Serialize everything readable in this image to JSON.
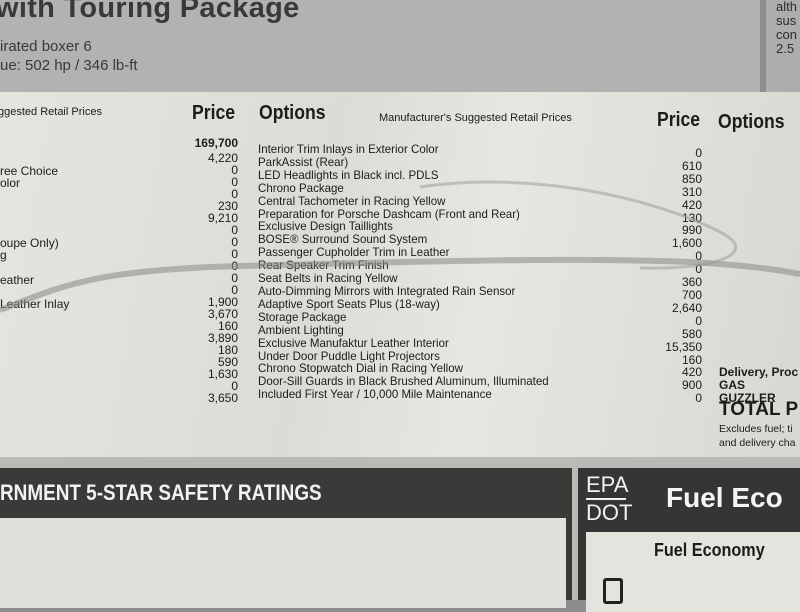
{
  "header": {
    "title": "with Touring Package",
    "engine": "irated boxer 6",
    "torque": "ue: 502 hp / 346 lb-ft",
    "right_text": [
      "alth",
      "sus",
      "con",
      "2.5"
    ]
  },
  "left_column": {
    "header": "ggested Retail Prices",
    "price_header": "Price",
    "labels": [
      {
        "text": "ree Choice",
        "row": 2
      },
      {
        "text": "olor",
        "row": 3
      },
      {
        "text": "oupe Only)",
        "row": 8
      },
      {
        "text": "g",
        "row": 9
      },
      {
        "text": "eather",
        "row": 11
      },
      {
        "text": "Leather Inlay",
        "row": 13
      }
    ],
    "prices": [
      "169,700",
      "4,220",
      "0",
      "0",
      "0",
      "230",
      "9,210",
      "0",
      "0",
      "0",
      "0",
      "0",
      "0",
      "1,900",
      "3,670",
      "160",
      "3,890",
      "180",
      "590",
      "1,630",
      "0",
      "3,650"
    ]
  },
  "middle_column": {
    "options_header": "Options",
    "msrp_header": "Manufacturer's Suggested Retail Prices",
    "price_header": "Price",
    "items": [
      {
        "name": "Interior Trim Inlays in Exterior Color",
        "price": "0"
      },
      {
        "name": "ParkAssist (Rear)",
        "price": "610"
      },
      {
        "name": "LED Headlights in Black incl. PDLS",
        "price": "850"
      },
      {
        "name": "Chrono Package",
        "price": "310"
      },
      {
        "name": "Central Tachometer in Racing Yellow",
        "price": "420"
      },
      {
        "name": "Preparation for Porsche Dashcam (Front and Rear)",
        "price": "130"
      },
      {
        "name": "Exclusive Design Taillights",
        "price": "990"
      },
      {
        "name": "BOSE® Surround Sound System",
        "price": "1,600"
      },
      {
        "name": "Passenger Cupholder Trim in Leather",
        "price": "0"
      },
      {
        "name": "Rear Speaker Trim Finish",
        "price": "0"
      },
      {
        "name": "Seat Belts in Racing Yellow",
        "price": "360"
      },
      {
        "name": "Auto-Dimming Mirrors with Integrated Rain Sensor",
        "price": "700"
      },
      {
        "name": "Adaptive Sport Seats Plus (18-way)",
        "price": "2,640"
      },
      {
        "name": "Storage Package",
        "price": "0"
      },
      {
        "name": "Ambient Lighting",
        "price": "580"
      },
      {
        "name": "Exclusive Manufaktur Leather Interior",
        "price": "15,350"
      },
      {
        "name": "Under Door Puddle Light Projectors",
        "price": "160"
      },
      {
        "name": "Chrono Stopwatch Dial in Racing Yellow",
        "price": "420"
      },
      {
        "name": "Door-Sill Guards in Black Brushed Aluminum, Illuminated",
        "price": "900"
      },
      {
        "name": "Included First Year / 10,000 Mile Maintenance",
        "price": "0"
      }
    ]
  },
  "right_column": {
    "options_header": "Options",
    "delivery": "Delivery, Proc",
    "gas_guzzler": "GAS GUZZLER",
    "total": "TOTAL P",
    "note1": "Excludes fuel; ti",
    "note2": "and delivery cha"
  },
  "safety": {
    "title": "RNMENT 5-STAR SAFETY RATINGS"
  },
  "epa": {
    "epa": "EPA",
    "dot": "DOT",
    "title": "Fuel Eco",
    "subtitle": "Fuel Economy",
    "icon": "fuel-pump-icon"
  }
}
